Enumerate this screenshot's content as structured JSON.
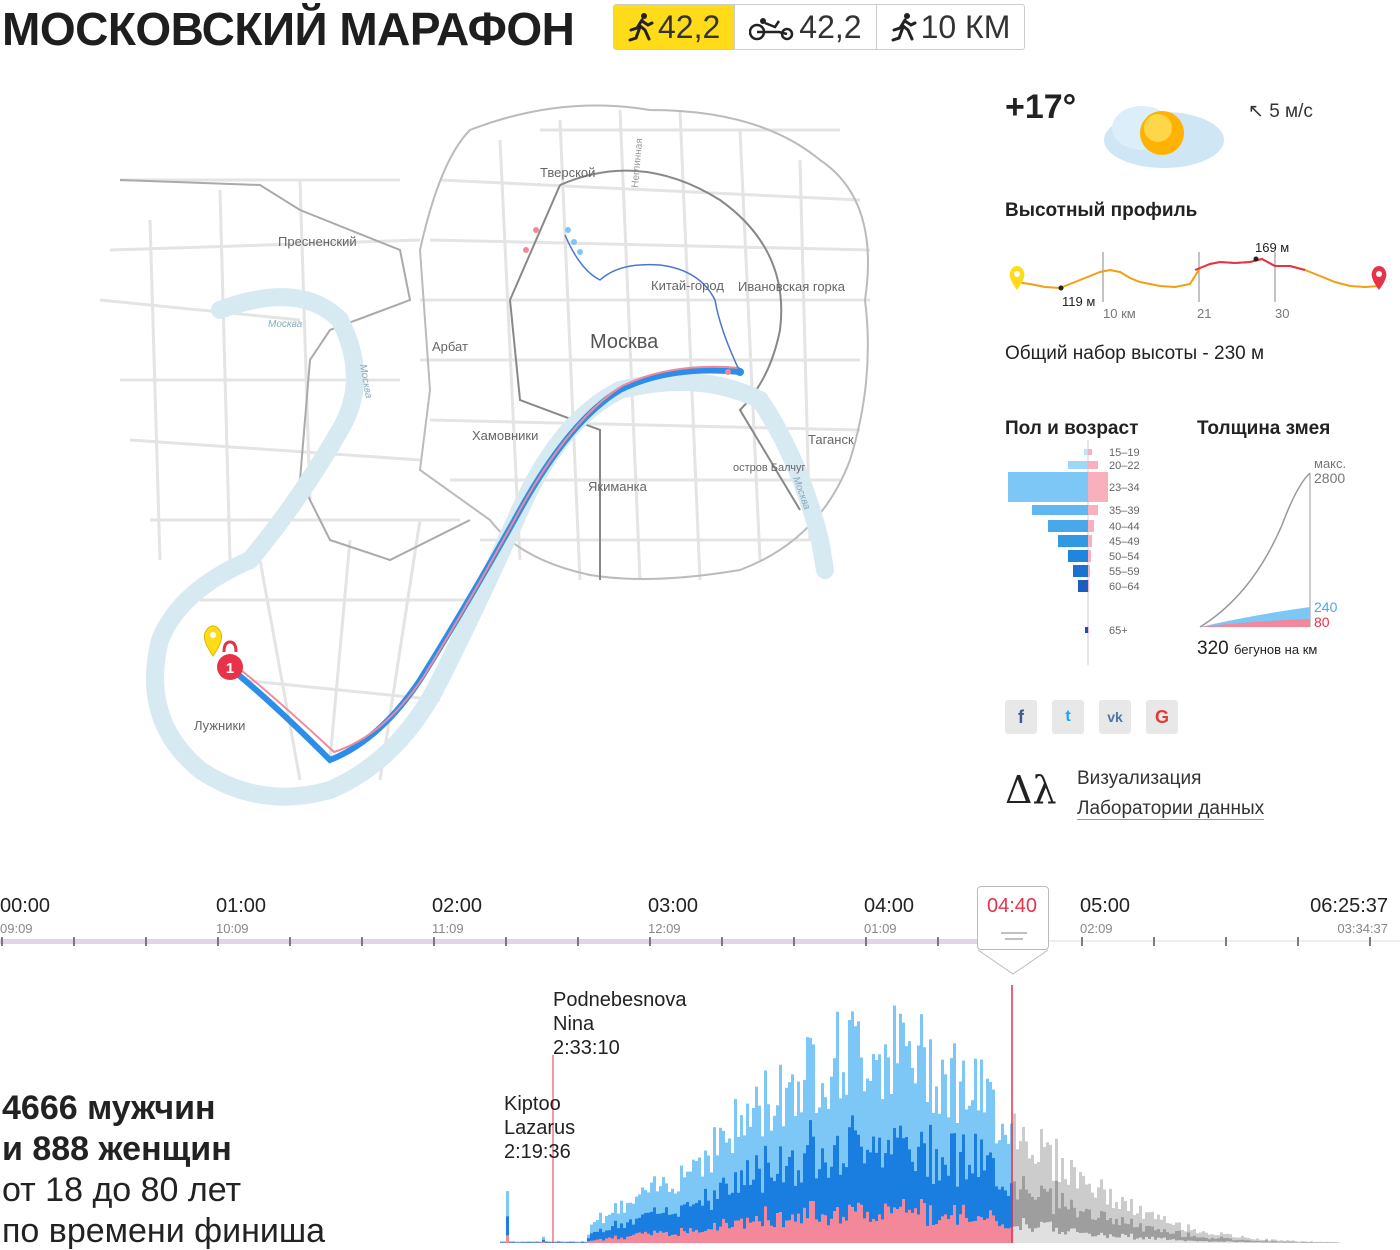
{
  "header": {
    "title": "МОСКОВСКИЙ МАРАФОН",
    "tabs": [
      {
        "label": "42,2",
        "icon": "runner-icon",
        "active": true
      },
      {
        "label": "42,2",
        "icon": "handbike-icon",
        "active": false
      },
      {
        "label": "10 КМ",
        "icon": "runner-icon",
        "active": false
      }
    ]
  },
  "map": {
    "city_label": "Москва",
    "districts": [
      "Тверской",
      "Пресненский",
      "Арбат",
      "Хамовники",
      "Китай-город",
      "Ивановская горка",
      "Якиманка",
      "Таганск",
      "остров Балчуг",
      "Лужники"
    ],
    "river_labels": [
      "Москва",
      "Москва",
      "Москва"
    ],
    "street_label": "Неглинная",
    "marker_number": "1"
  },
  "weather": {
    "temperature": "+17°",
    "wind": "↖ 5 м/с"
  },
  "elevation": {
    "title": "Высотный профиль",
    "min_label": "119 м",
    "max_label": "169 м",
    "km_labels": [
      "10 км",
      "21",
      "30"
    ],
    "total": "Общий набор высоты - 230 м"
  },
  "gender_age": {
    "title": "Пол и возраст",
    "groups": [
      "15–19",
      "20–22",
      "23–34",
      "35–39",
      "40–44",
      "45–49",
      "50–54",
      "55–59",
      "60–64",
      "65+"
    ],
    "men": [
      4,
      20,
      80,
      56,
      40,
      30,
      20,
      15,
      10,
      3
    ],
    "women": [
      4,
      10,
      20,
      10,
      6,
      4,
      3,
      2,
      1,
      1
    ]
  },
  "snake": {
    "title": "Толщина змея",
    "max_label": "макс.",
    "max_value": "2800",
    "men_value": "240",
    "women_value": "80",
    "caption_number": "320",
    "caption_text": "бегунов на км"
  },
  "social": [
    "f",
    "t",
    "vk",
    "G"
  ],
  "lab": {
    "logo": "Δλ",
    "line1": "Визуализация",
    "line2": "Лаборатории данных"
  },
  "timeline": {
    "ticks": [
      {
        "label": "00:00",
        "sub": "09:09"
      },
      {
        "label": "01:00",
        "sub": "10:09"
      },
      {
        "label": "02:00",
        "sub": "11:09"
      },
      {
        "label": "03:00",
        "sub": "12:09"
      },
      {
        "label": "04:00",
        "sub": "01:09"
      },
      {
        "label": "05:00",
        "sub": "02:09"
      }
    ],
    "end_label": "06:25:37",
    "end_sub": "03:34:37",
    "current": "04:40"
  },
  "stats": {
    "line1": "4666 мужчин",
    "line2": "и 888 женщин",
    "line3": "от 18 до 80 лет",
    "line4": "по времени финиша"
  },
  "annotations": [
    {
      "name": "Podnebesnova",
      "first": "Nina",
      "time": "2:33:10"
    },
    {
      "name": "Kiptoo",
      "first": "Lazarus",
      "time": "2:19:36"
    }
  ],
  "colors": {
    "yellow": "#ffdb1a",
    "men_light": "#7cc7f5",
    "men_dark": "#1a7ee0",
    "women": "#f2889a",
    "accent": "#e8324a",
    "grey": "#bdbdbd"
  }
}
